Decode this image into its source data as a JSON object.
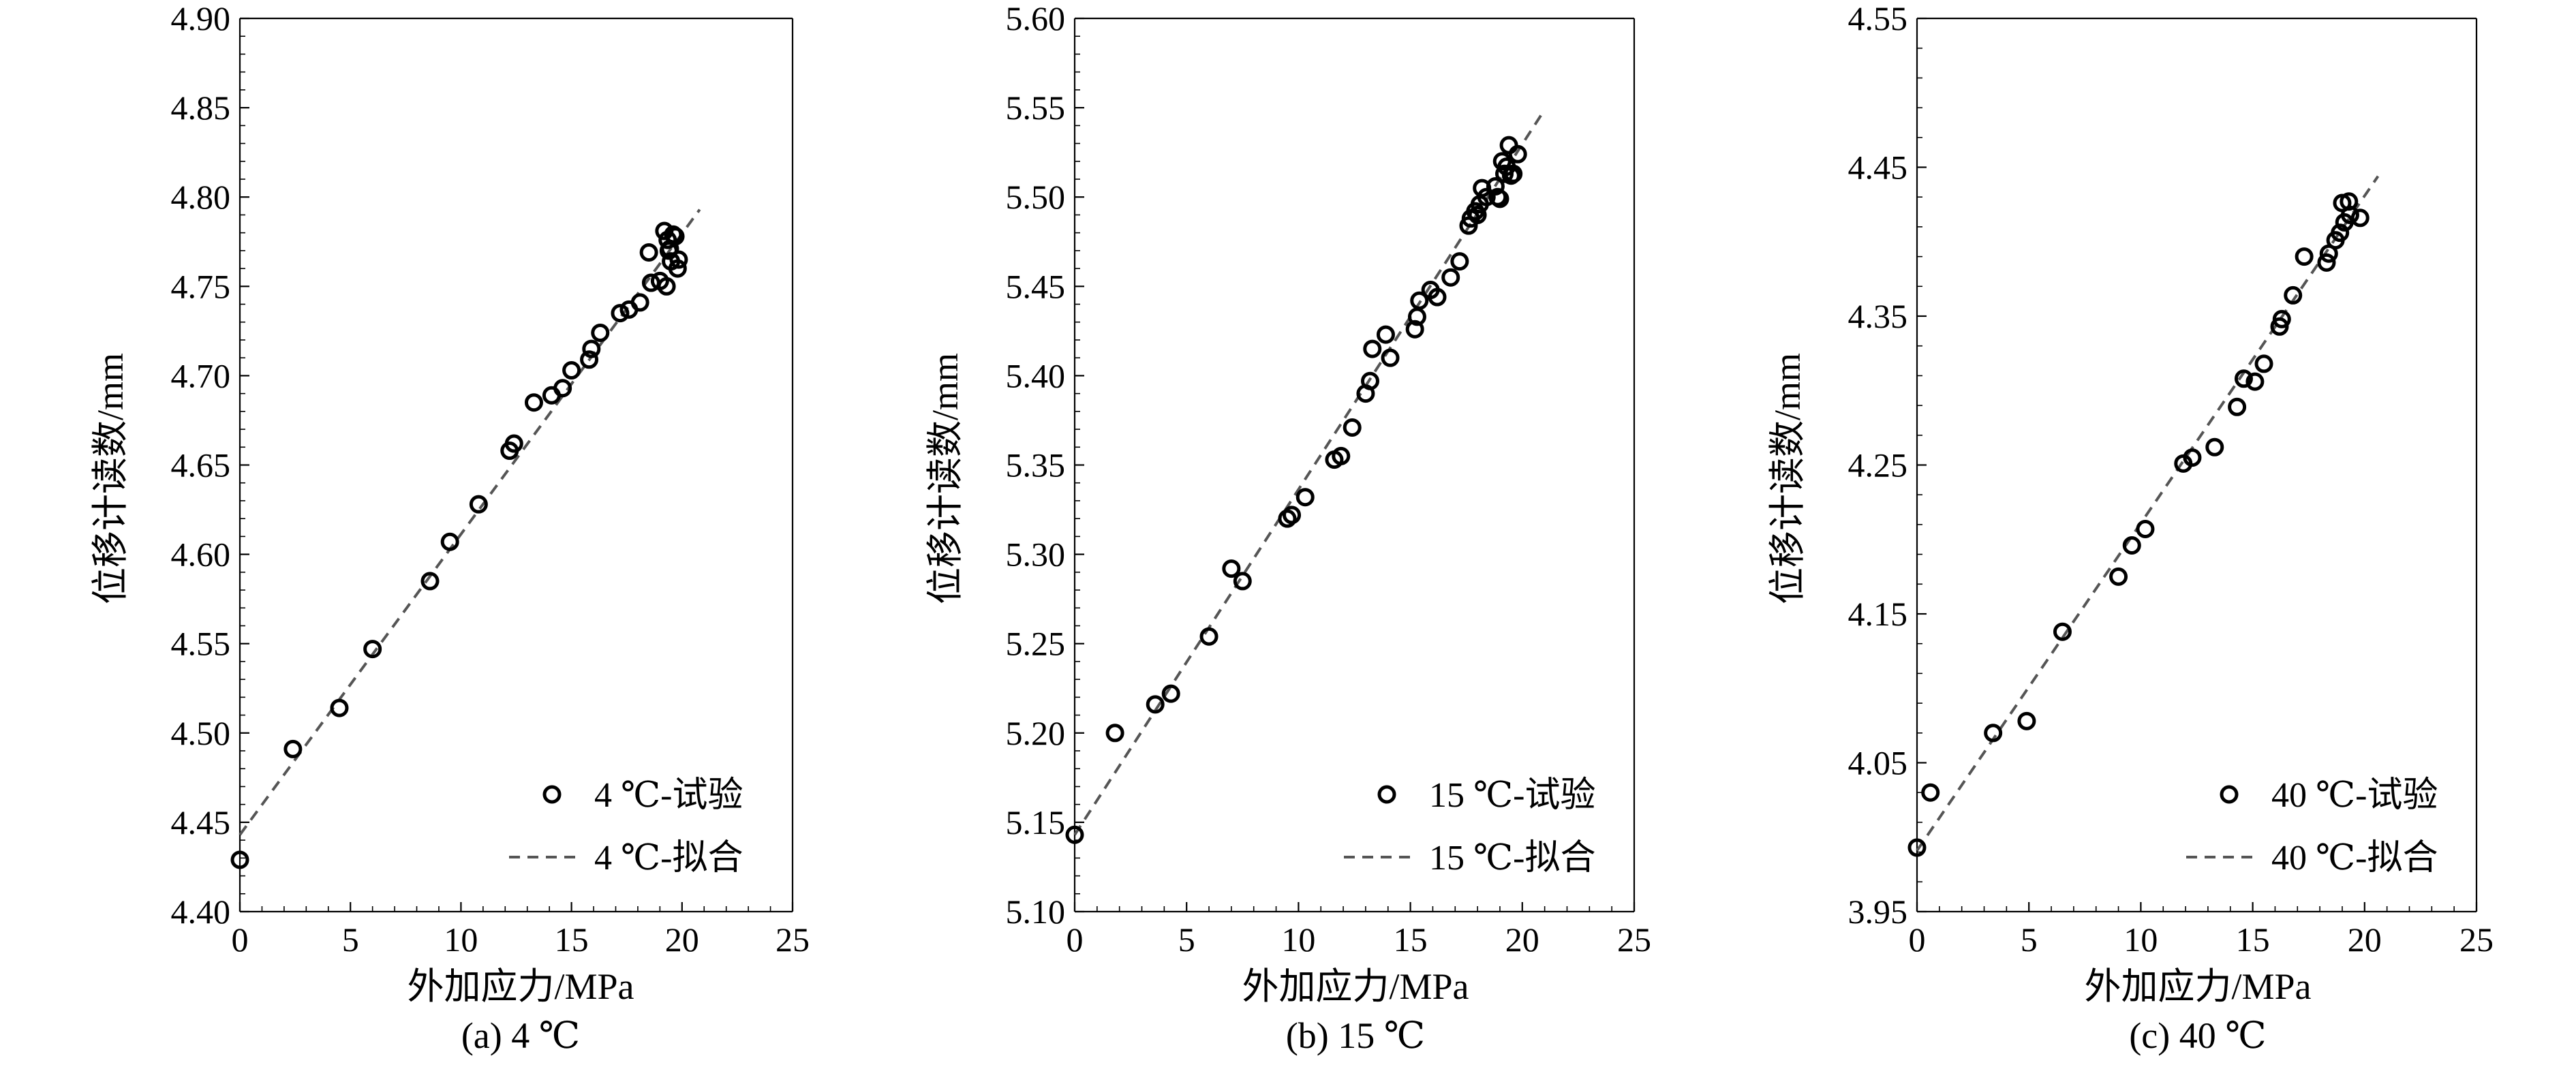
{
  "chart_data": [
    {
      "type": "scatter",
      "caption": "(a) 4 ℃",
      "xlabel": "外加应力/MPa",
      "ylabel": "位移计读数/mm",
      "xlim": [
        0,
        25
      ],
      "ylim": [
        4.4,
        4.9
      ],
      "x_ticks": [
        0,
        5,
        10,
        15,
        20,
        25
      ],
      "y_ticks": [
        4.4,
        4.45,
        4.5,
        4.55,
        4.6,
        4.65,
        4.7,
        4.75,
        4.8,
        4.85,
        4.9
      ],
      "y_decimals": 2,
      "legend_position": "bottom-right",
      "series": [
        {
          "name": "4 ℃-试验",
          "style": "open-circle",
          "points": [
            [
              0,
              4.429
            ],
            [
              2.4,
              4.491
            ],
            [
              4.5,
              4.514
            ],
            [
              6.0,
              4.547
            ],
            [
              8.6,
              4.585
            ],
            [
              9.5,
              4.607
            ],
            [
              10.8,
              4.628
            ],
            [
              12.2,
              4.658
            ],
            [
              12.4,
              4.662
            ],
            [
              13.3,
              4.685
            ],
            [
              14.1,
              4.689
            ],
            [
              14.6,
              4.693
            ],
            [
              15.0,
              4.703
            ],
            [
              15.8,
              4.709
            ],
            [
              15.9,
              4.715
            ],
            [
              16.3,
              4.724
            ],
            [
              17.2,
              4.735
            ],
            [
              17.6,
              4.737
            ],
            [
              18.1,
              4.741
            ],
            [
              18.5,
              4.769
            ],
            [
              18.6,
              4.752
            ],
            [
              19.0,
              4.753
            ],
            [
              19.2,
              4.781
            ],
            [
              19.3,
              4.75
            ],
            [
              19.35,
              4.776
            ],
            [
              19.45,
              4.771
            ],
            [
              19.5,
              4.764
            ],
            [
              19.6,
              4.779
            ],
            [
              19.7,
              4.778
            ],
            [
              19.8,
              4.76
            ],
            [
              19.85,
              4.765
            ],
            [
              19.4,
              4.77
            ]
          ]
        },
        {
          "name": "4 ℃-拟合",
          "style": "dashed-line",
          "points": [
            [
              0,
              4.443
            ],
            [
              20.8,
              4.793
            ]
          ]
        }
      ]
    },
    {
      "type": "scatter",
      "caption": "(b) 15 ℃",
      "xlabel": "外加应力/MPa",
      "ylabel": "位移计读数/mm",
      "xlim": [
        0,
        25
      ],
      "ylim": [
        5.1,
        5.6
      ],
      "x_ticks": [
        0,
        5,
        10,
        15,
        20,
        25
      ],
      "y_ticks": [
        5.1,
        5.15,
        5.2,
        5.25,
        5.3,
        5.35,
        5.4,
        5.45,
        5.5,
        5.55,
        5.6
      ],
      "y_decimals": 2,
      "legend_position": "bottom-right",
      "series": [
        {
          "name": "15 ℃-试验",
          "style": "open-circle",
          "points": [
            [
              0,
              5.143
            ],
            [
              1.8,
              5.2
            ],
            [
              3.6,
              5.216
            ],
            [
              4.3,
              5.222
            ],
            [
              6.0,
              5.254
            ],
            [
              7.0,
              5.292
            ],
            [
              7.5,
              5.285
            ],
            [
              9.5,
              5.32
            ],
            [
              9.7,
              5.322
            ],
            [
              10.3,
              5.332
            ],
            [
              11.6,
              5.353
            ],
            [
              11.9,
              5.355
            ],
            [
              12.4,
              5.371
            ],
            [
              13.0,
              5.39
            ],
            [
              13.2,
              5.397
            ],
            [
              13.3,
              5.415
            ],
            [
              13.9,
              5.423
            ],
            [
              14.1,
              5.41
            ],
            [
              15.2,
              5.426
            ],
            [
              15.3,
              5.433
            ],
            [
              15.4,
              5.442
            ],
            [
              15.9,
              5.448
            ],
            [
              16.2,
              5.444
            ],
            [
              16.8,
              5.455
            ],
            [
              17.2,
              5.464
            ],
            [
              17.6,
              5.484
            ],
            [
              17.7,
              5.488
            ],
            [
              17.9,
              5.492
            ],
            [
              18.0,
              5.49
            ],
            [
              18.1,
              5.496
            ],
            [
              18.2,
              5.505
            ],
            [
              18.4,
              5.5
            ],
            [
              18.8,
              5.506
            ],
            [
              18.9,
              5.5
            ],
            [
              19.0,
              5.499
            ],
            [
              19.1,
              5.52
            ],
            [
              19.2,
              5.513
            ],
            [
              19.3,
              5.517
            ],
            [
              19.4,
              5.529
            ],
            [
              19.5,
              5.512
            ],
            [
              19.6,
              5.513
            ],
            [
              19.8,
              5.524
            ]
          ]
        },
        {
          "name": "15 ℃-拟合",
          "style": "dashed-line",
          "points": [
            [
              0,
              5.143
            ],
            [
              20.9,
              5.547
            ]
          ]
        }
      ]
    },
    {
      "type": "scatter",
      "caption": "(c) 40 ℃",
      "xlabel": "外加应力/MPa",
      "ylabel": "位移计读数/mm",
      "xlim": [
        0,
        25
      ],
      "ylim": [
        3.95,
        4.55
      ],
      "x_ticks": [
        0,
        5,
        10,
        15,
        20,
        25
      ],
      "y_ticks": [
        3.95,
        4.05,
        4.15,
        4.25,
        4.35,
        4.45,
        4.55
      ],
      "y_decimals": 2,
      "legend_position": "bottom-right",
      "series": [
        {
          "name": "40 ℃-试验",
          "style": "open-circle",
          "points": [
            [
              0,
              3.993
            ],
            [
              0.6,
              4.03
            ],
            [
              3.4,
              4.07
            ],
            [
              4.9,
              4.078
            ],
            [
              6.5,
              4.138
            ],
            [
              9.0,
              4.175
            ],
            [
              9.6,
              4.196
            ],
            [
              10.2,
              4.207
            ],
            [
              11.9,
              4.251
            ],
            [
              12.3,
              4.255
            ],
            [
              13.3,
              4.262
            ],
            [
              14.3,
              4.289
            ],
            [
              14.6,
              4.308
            ],
            [
              15.1,
              4.306
            ],
            [
              15.5,
              4.318
            ],
            [
              16.2,
              4.343
            ],
            [
              16.3,
              4.348
            ],
            [
              16.8,
              4.364
            ],
            [
              17.3,
              4.39
            ],
            [
              18.3,
              4.386
            ],
            [
              18.4,
              4.392
            ],
            [
              18.7,
              4.401
            ],
            [
              18.9,
              4.406
            ],
            [
              19.0,
              4.426
            ],
            [
              19.1,
              4.413
            ],
            [
              19.3,
              4.427
            ],
            [
              19.35,
              4.418
            ],
            [
              19.8,
              4.416
            ]
          ]
        },
        {
          "name": "40 ℃-拟合",
          "style": "dashed-line",
          "points": [
            [
              0,
              3.991
            ],
            [
              20.6,
              4.444
            ]
          ]
        }
      ]
    }
  ]
}
